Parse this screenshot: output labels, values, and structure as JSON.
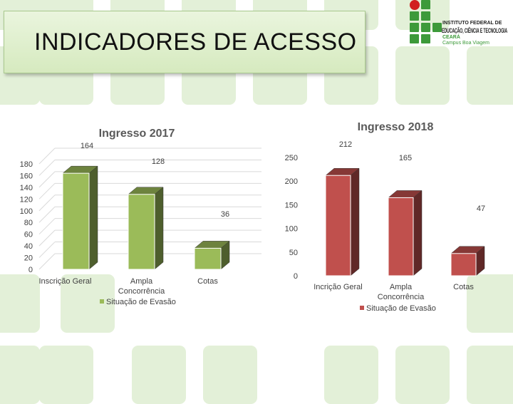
{
  "slide": {
    "title": "INDICADORES DE ACESSO"
  },
  "logo": {
    "line1": "INSTITUTO FEDERAL DE",
    "line2": "EDUCAÇÃO, CIÊNCIA E TECNOLOGIA",
    "line3": "CEARÁ",
    "line4": "Campus Boa Viagem"
  },
  "chart_data": [
    {
      "type": "bar",
      "title": "Ingresso 2017",
      "categories": [
        "Inscrição Geral",
        "Ampla Concorrência",
        "Cotas"
      ],
      "series": [
        {
          "name": "Situação de Evasão",
          "values": [
            164,
            128,
            36
          ]
        }
      ],
      "ylim": [
        0,
        180
      ],
      "yticks": [
        0,
        20,
        40,
        60,
        80,
        100,
        120,
        140,
        160,
        180
      ],
      "color": "#9bbb59",
      "legend": "bottom",
      "grid": true,
      "style": "3d"
    },
    {
      "type": "bar",
      "title": "Ingresso 2018",
      "categories": [
        "Incrição Geral",
        "Ampla Concorrência",
        "Cotas"
      ],
      "series": [
        {
          "name": "Situação de Evasão",
          "values": [
            212,
            165,
            47
          ]
        }
      ],
      "ylim": [
        0,
        250
      ],
      "yticks": [
        0,
        50,
        100,
        150,
        200,
        250
      ],
      "color": "#c0504d",
      "legend": "bottom",
      "grid": false,
      "style": "3d"
    }
  ]
}
